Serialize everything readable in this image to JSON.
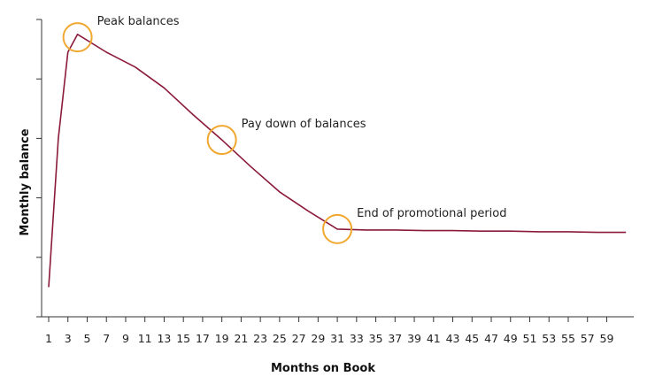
{
  "chart_data": {
    "type": "line",
    "title": "",
    "xlabel": "Months on Book",
    "ylabel": "Monthly balance",
    "xlim": [
      1,
      60
    ],
    "ylim": [
      0,
      10
    ],
    "grid": false,
    "y_tick_labels_shown": false,
    "x_tick_labels": [
      "1",
      "3",
      "5",
      "7",
      "9",
      "11",
      "13",
      "15",
      "17",
      "19",
      "21",
      "23",
      "25",
      "27",
      "29",
      "31",
      "33",
      "35",
      "37",
      "39",
      "41",
      "43",
      "45",
      "47",
      "49",
      "51",
      "53",
      "55",
      "57",
      "59"
    ],
    "series": [
      {
        "name": "Monthly balance",
        "color": "#8b1a3a",
        "x": [
          1,
          2,
          3,
          4,
          7,
          10,
          13,
          16,
          19,
          22,
          25,
          28,
          31,
          34,
          37,
          40,
          43,
          46,
          49,
          52,
          55,
          58,
          61
        ],
        "y": [
          1.0,
          6.0,
          8.9,
          9.5,
          8.9,
          8.4,
          7.7,
          6.8,
          5.95,
          5.05,
          4.2,
          3.55,
          2.95,
          2.92,
          2.92,
          2.9,
          2.9,
          2.88,
          2.88,
          2.86,
          2.86,
          2.84,
          2.84
        ]
      }
    ],
    "annotations": [
      {
        "label": "Peak balances",
        "x": 4,
        "y": 9.4,
        "color": "#f0a830"
      },
      {
        "label": "Pay down of balances",
        "x": 19,
        "y": 5.95,
        "color": "#f0a830"
      },
      {
        "label": "End of promotional period",
        "x": 31,
        "y": 2.95,
        "color": "#f0a830"
      }
    ]
  }
}
